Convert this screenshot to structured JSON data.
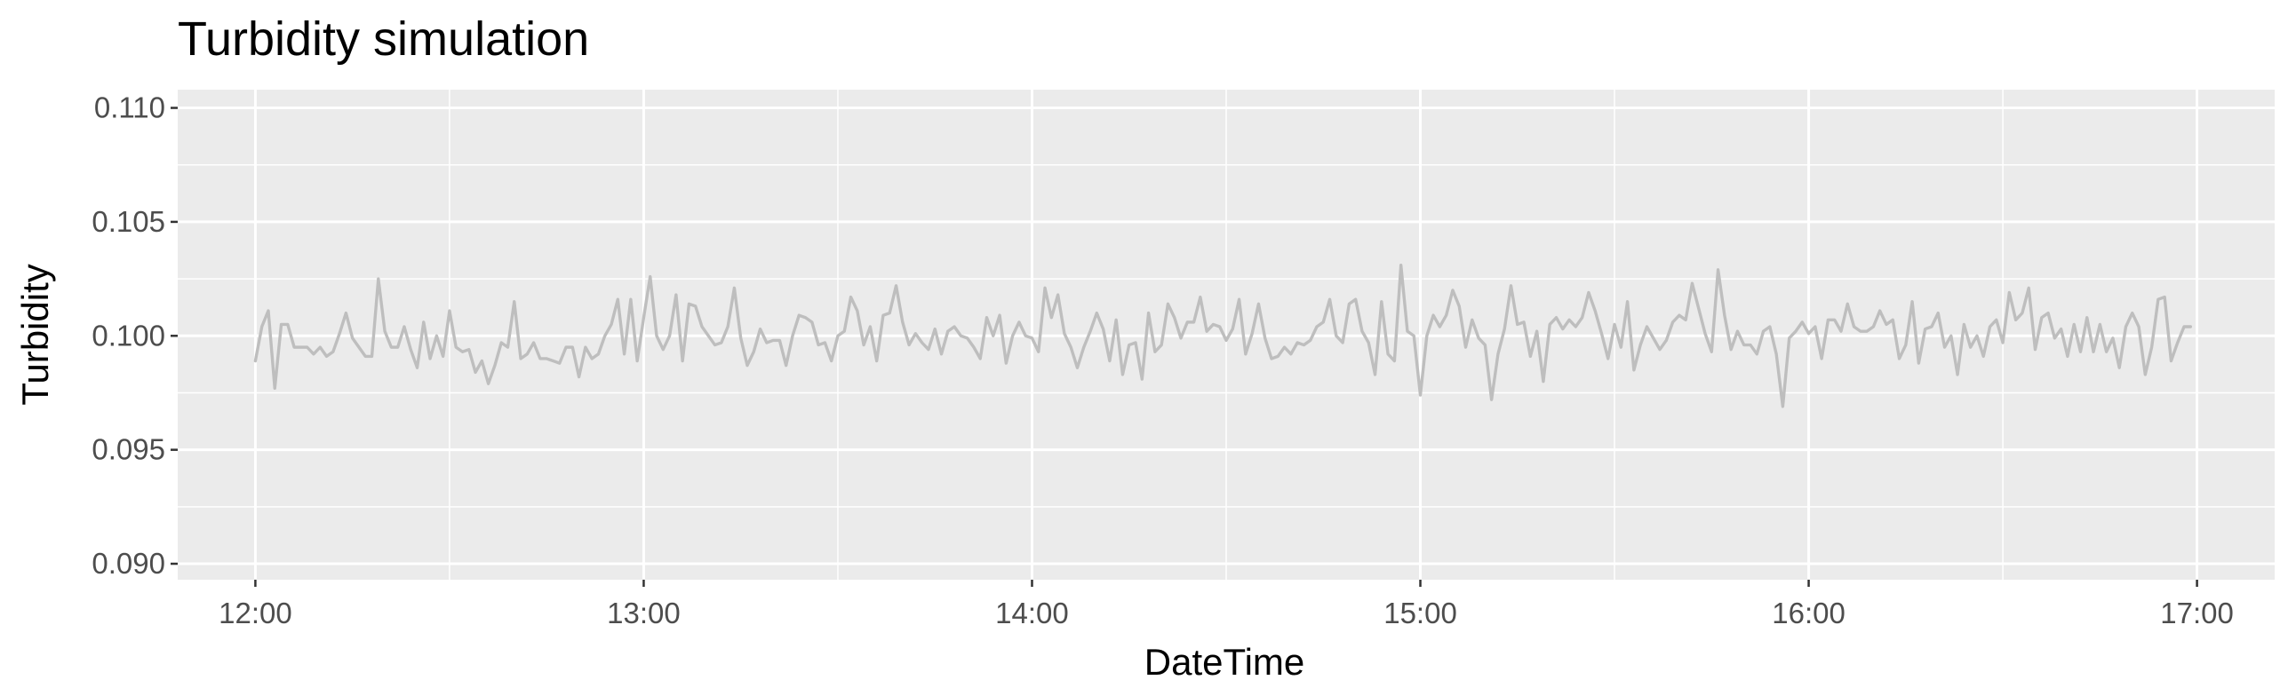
{
  "chart_data": {
    "type": "line",
    "title": "Turbidity simulation",
    "xlabel": "DateTime",
    "ylabel": "Turbidity",
    "xlim": [
      "11:48",
      "17:12"
    ],
    "ylim": [
      0.0893,
      0.1108
    ],
    "x_ticks": [
      "12:00",
      "13:00",
      "14:00",
      "15:00",
      "16:00",
      "17:00"
    ],
    "y_ticks": [
      "0.090",
      "0.095",
      "0.100",
      "0.105",
      "0.110"
    ],
    "grid": true,
    "legend": "none",
    "colors": {
      "panel_background": "#ebebeb",
      "grid_line": "#ffffff",
      "series_line": "#bebebe",
      "tick_label": "#4d4d4d",
      "tick_mark": "#333333"
    },
    "series": [
      {
        "x_start": "12:00",
        "x_interval_minutes": 1,
        "values": [
          0.0989,
          0.1004,
          0.1011,
          0.0977,
          0.1005,
          0.1005,
          0.0995,
          0.0995,
          0.0995,
          0.0992,
          0.0995,
          0.0991,
          0.0993,
          0.1001,
          0.101,
          0.0999,
          0.0995,
          0.0991,
          0.0991,
          0.1025,
          0.1002,
          0.0995,
          0.0995,
          0.1004,
          0.0994,
          0.0986,
          0.1006,
          0.099,
          0.1,
          0.0991,
          0.1011,
          0.0995,
          0.0993,
          0.0994,
          0.0984,
          0.0989,
          0.0979,
          0.0987,
          0.0997,
          0.0995,
          0.1015,
          0.099,
          0.0992,
          0.0997,
          0.099,
          0.099,
          0.0989,
          0.0988,
          0.0995,
          0.0995,
          0.0982,
          0.0995,
          0.099,
          0.0992,
          0.1,
          0.1005,
          0.1016,
          0.0992,
          0.1016,
          0.0989,
          0.1008,
          0.1026,
          0.1,
          0.0994,
          0.1,
          0.1018,
          0.0989,
          0.1014,
          0.1013,
          0.1004,
          0.1,
          0.0996,
          0.0997,
          0.1004,
          0.1021,
          0.0999,
          0.0987,
          0.0993,
          0.1003,
          0.0997,
          0.0998,
          0.0998,
          0.0987,
          0.1,
          0.1009,
          0.1008,
          0.1006,
          0.0996,
          0.0997,
          0.0989,
          0.1,
          0.1002,
          0.1017,
          0.1011,
          0.0996,
          0.1004,
          0.0989,
          0.1009,
          0.101,
          0.1022,
          0.1006,
          0.0996,
          0.1001,
          0.0997,
          0.0994,
          0.1003,
          0.0992,
          0.1002,
          0.1004,
          0.1,
          0.0999,
          0.0995,
          0.099,
          0.1008,
          0.1,
          0.1009,
          0.0988,
          0.1,
          0.1006,
          0.1,
          0.0999,
          0.0993,
          0.1021,
          0.1008,
          0.1018,
          0.1001,
          0.0995,
          0.0986,
          0.0995,
          0.1002,
          0.101,
          0.1003,
          0.0989,
          0.1007,
          0.0983,
          0.0996,
          0.0997,
          0.0981,
          0.101,
          0.0993,
          0.0996,
          0.1014,
          0.1008,
          0.0999,
          0.1006,
          0.1006,
          0.1017,
          0.1002,
          0.1005,
          0.1004,
          0.0998,
          0.1003,
          0.1016,
          0.0992,
          0.1001,
          0.1014,
          0.0999,
          0.099,
          0.0991,
          0.0995,
          0.0992,
          0.0997,
          0.0996,
          0.0998,
          0.1004,
          0.1006,
          0.1016,
          0.1,
          0.0997,
          0.1014,
          0.1016,
          0.1002,
          0.0997,
          0.0983,
          0.1015,
          0.0992,
          0.0989,
          0.1031,
          0.1002,
          0.1,
          0.0974,
          0.1,
          0.1009,
          0.1004,
          0.1009,
          0.102,
          0.1013,
          0.0995,
          0.1007,
          0.0999,
          0.0996,
          0.0972,
          0.0992,
          0.1003,
          0.1022,
          0.1005,
          0.1006,
          0.0991,
          0.1002,
          0.098,
          0.1005,
          0.1008,
          0.1003,
          0.1007,
          0.1004,
          0.1008,
          0.1019,
          0.1011,
          0.1001,
          0.099,
          0.1005,
          0.0995,
          0.1015,
          0.0985,
          0.0996,
          0.1004,
          0.0999,
          0.0994,
          0.0998,
          0.1006,
          0.1009,
          0.1007,
          0.1023,
          0.1012,
          0.1001,
          0.0993,
          0.1029,
          0.1009,
          0.0994,
          0.1002,
          0.0996,
          0.0996,
          0.0992,
          0.1002,
          0.1004,
          0.0992,
          0.0969,
          0.0999,
          0.1002,
          0.1006,
          0.1001,
          0.1004,
          0.099,
          0.1007,
          0.1007,
          0.1002,
          0.1014,
          0.1004,
          0.1002,
          0.1002,
          0.1004,
          0.1011,
          0.1005,
          0.1007,
          0.099,
          0.0996,
          0.1015,
          0.0988,
          0.1003,
          0.1004,
          0.101,
          0.0995,
          0.1,
          0.0983,
          0.1005,
          0.0995,
          0.1,
          0.0991,
          0.1004,
          0.1007,
          0.0997,
          0.1019,
          0.1007,
          0.101,
          0.1021,
          0.0994,
          0.1008,
          0.101,
          0.0999,
          0.1003,
          0.0991,
          0.1005,
          0.0993,
          0.1008,
          0.0993,
          0.1005,
          0.0993,
          0.0999,
          0.0986,
          0.1004,
          0.101,
          0.1004,
          0.0983,
          0.0995,
          0.1016,
          0.1017,
          0.0989,
          0.0997,
          0.1004,
          0.1004
        ]
      }
    ]
  }
}
